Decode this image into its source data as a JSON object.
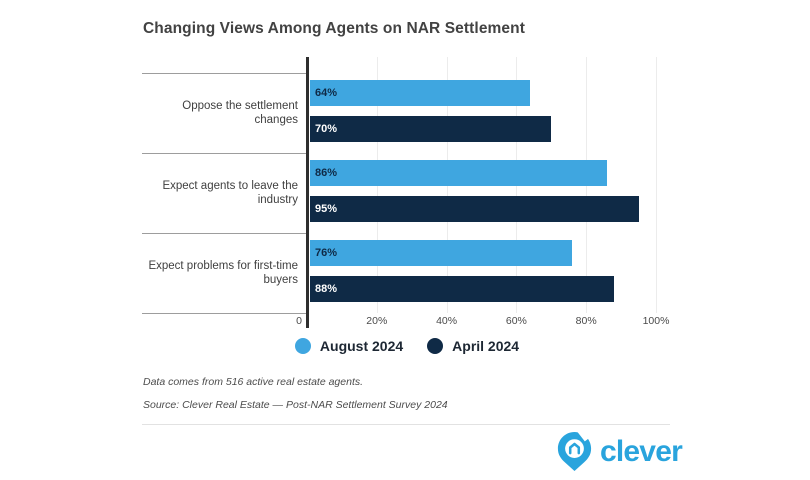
{
  "title": "Changing Views Among Agents on NAR Settlement",
  "colors": {
    "august_blue": "#3FA6E0",
    "april_navy": "#0F2A46",
    "value_on_light": "#0F2A46",
    "value_on_dark": "#FFFFFF",
    "axis": "#2E2E2E",
    "gridline": "#ECECEC",
    "separator": "#9D9D9D",
    "logo_blue": "#29A4DD"
  },
  "chart_data": {
    "type": "bar",
    "orientation": "horizontal",
    "title": "Changing Views Among Agents on NAR Settlement",
    "categories": [
      "Oppose the settlement changes",
      "Expect agents to leave the industry",
      "Expect problems for first-time buyers"
    ],
    "series": [
      {
        "name": "August 2024",
        "color": "#3FA6E0",
        "values": [
          64,
          86,
          76
        ]
      },
      {
        "name": "April 2024",
        "color": "#0F2A46",
        "values": [
          70,
          95,
          88
        ]
      }
    ],
    "value_suffix": "%",
    "xlim": [
      0,
      100
    ],
    "x_ticks": [
      {
        "label": "0",
        "value": 0
      },
      {
        "label": "20%",
        "value": 20
      },
      {
        "label": "40%",
        "value": 40
      },
      {
        "label": "60%",
        "value": 60
      },
      {
        "label": "80%",
        "value": 80
      },
      {
        "label": "100%",
        "value": 100
      }
    ],
    "grid": true,
    "legend_position": "bottom"
  },
  "legend": [
    {
      "label": "August 2024",
      "color": "#3FA6E0"
    },
    {
      "label": "April 2024",
      "color": "#0F2A46"
    }
  ],
  "footnotes": {
    "note": "Data comes from 516 active real estate agents.",
    "source": "Source: Clever Real Estate — Post-NAR Settlement Survey 2024"
  },
  "logo": {
    "text": "clever"
  }
}
